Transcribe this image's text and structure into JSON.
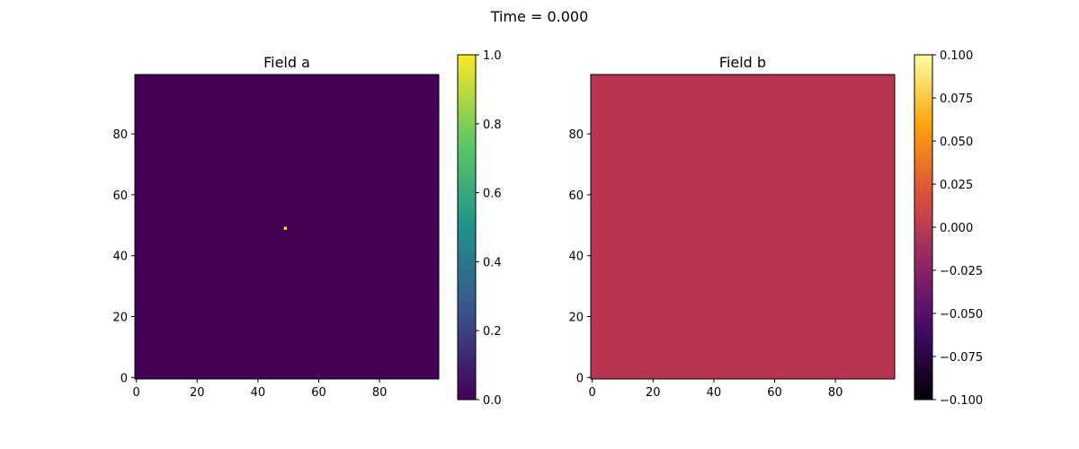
{
  "figure": {
    "suptitle": "Time = 0.000"
  },
  "chart_data": [
    {
      "type": "heatmap",
      "title": "Field a",
      "xlabel": "",
      "ylabel": "",
      "grid_shape": [
        100,
        100
      ],
      "xlim": [
        -0.5,
        99.5
      ],
      "ylim": [
        -0.5,
        99.5
      ],
      "origin": "lower",
      "x_ticks": [
        0,
        20,
        40,
        60,
        80
      ],
      "y_ticks": [
        0,
        20,
        40,
        60,
        80
      ],
      "background_value": 0.0,
      "point_values": [
        {
          "x": 49,
          "y": 49,
          "value": 1.0
        }
      ],
      "colormap": "viridis",
      "colormap_stops": [
        "#440154",
        "#3b528b",
        "#21918c",
        "#5ec962",
        "#fde725"
      ],
      "value_color": "#440154",
      "point_color": "#fde725",
      "colorbar": {
        "range": [
          0.0,
          1.0
        ],
        "ticks": [
          "0.0",
          "0.2",
          "0.4",
          "0.6",
          "0.8",
          "1.0"
        ]
      }
    },
    {
      "type": "heatmap",
      "title": "Field b",
      "xlabel": "",
      "ylabel": "",
      "grid_shape": [
        100,
        100
      ],
      "xlim": [
        -0.5,
        99.5
      ],
      "ylim": [
        -0.5,
        99.5
      ],
      "origin": "lower",
      "x_ticks": [
        0,
        20,
        40,
        60,
        80
      ],
      "y_ticks": [
        0,
        20,
        40,
        60,
        80
      ],
      "background_value": 0.0,
      "point_values": [],
      "colormap": "inferno",
      "colormap_stops": [
        "#000004",
        "#420a68",
        "#932667",
        "#dd513a",
        "#fca50a",
        "#fcffa4"
      ],
      "value_color": "#b73551",
      "colorbar": {
        "range": [
          -0.1,
          0.1
        ],
        "ticks": [
          "−0.100",
          "−0.075",
          "−0.050",
          "−0.025",
          "0.000",
          "0.025",
          "0.050",
          "0.075",
          "0.100"
        ]
      }
    }
  ]
}
